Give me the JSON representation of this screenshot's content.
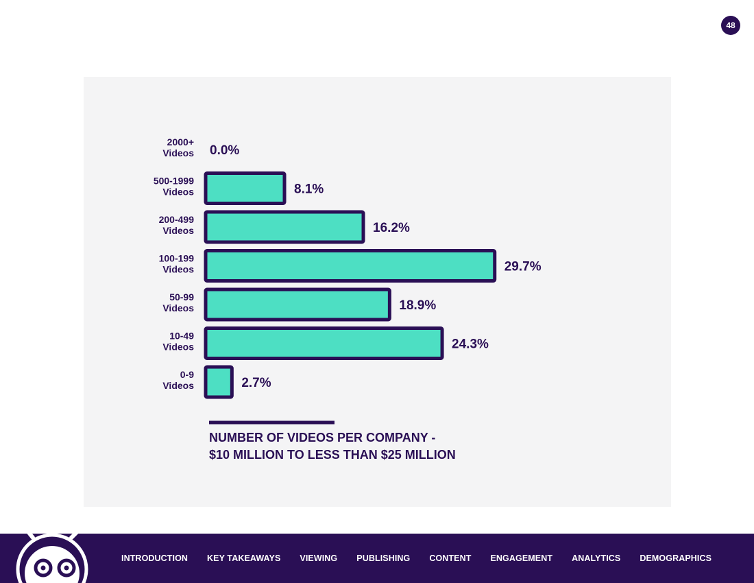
{
  "page_number": "48",
  "colors": {
    "bar_fill": "#4ddfc3",
    "bar_stroke": "#2a0f55",
    "text": "#2a0f55",
    "panel_bg": "#f4f4f5",
    "footer_bg": "#2a0f55"
  },
  "chart_data": {
    "type": "bar",
    "orientation": "horizontal",
    "categories": [
      [
        "2000+",
        "Videos"
      ],
      [
        "500-1999",
        "Videos"
      ],
      [
        "200-499",
        "Videos"
      ],
      [
        "100-199",
        "Videos"
      ],
      [
        "50-99",
        "Videos"
      ],
      [
        "10-49",
        "Videos"
      ],
      [
        "0-9",
        "Videos"
      ]
    ],
    "values": [
      0.0,
      8.1,
      16.2,
      29.7,
      18.9,
      24.3,
      2.7
    ],
    "value_labels": [
      "0.0%",
      "8.1%",
      "16.2%",
      "29.7%",
      "18.9%",
      "24.3%",
      "2.7%"
    ],
    "unit": "%",
    "title_lines": [
      "NUMBER OF VIDEOS PER COMPANY -",
      "$10 MILLION TO LESS THAN $25 MILLION"
    ]
  },
  "footer": {
    "mascot_icon": "robot-mascot-icon",
    "nav_items": [
      "INTRODUCTION",
      "KEY TAKEAWAYS",
      "VIEWING",
      "PUBLISHING",
      "CONTENT",
      "ENGAGEMENT",
      "ANALYTICS",
      "DEMOGRAPHICS"
    ]
  }
}
